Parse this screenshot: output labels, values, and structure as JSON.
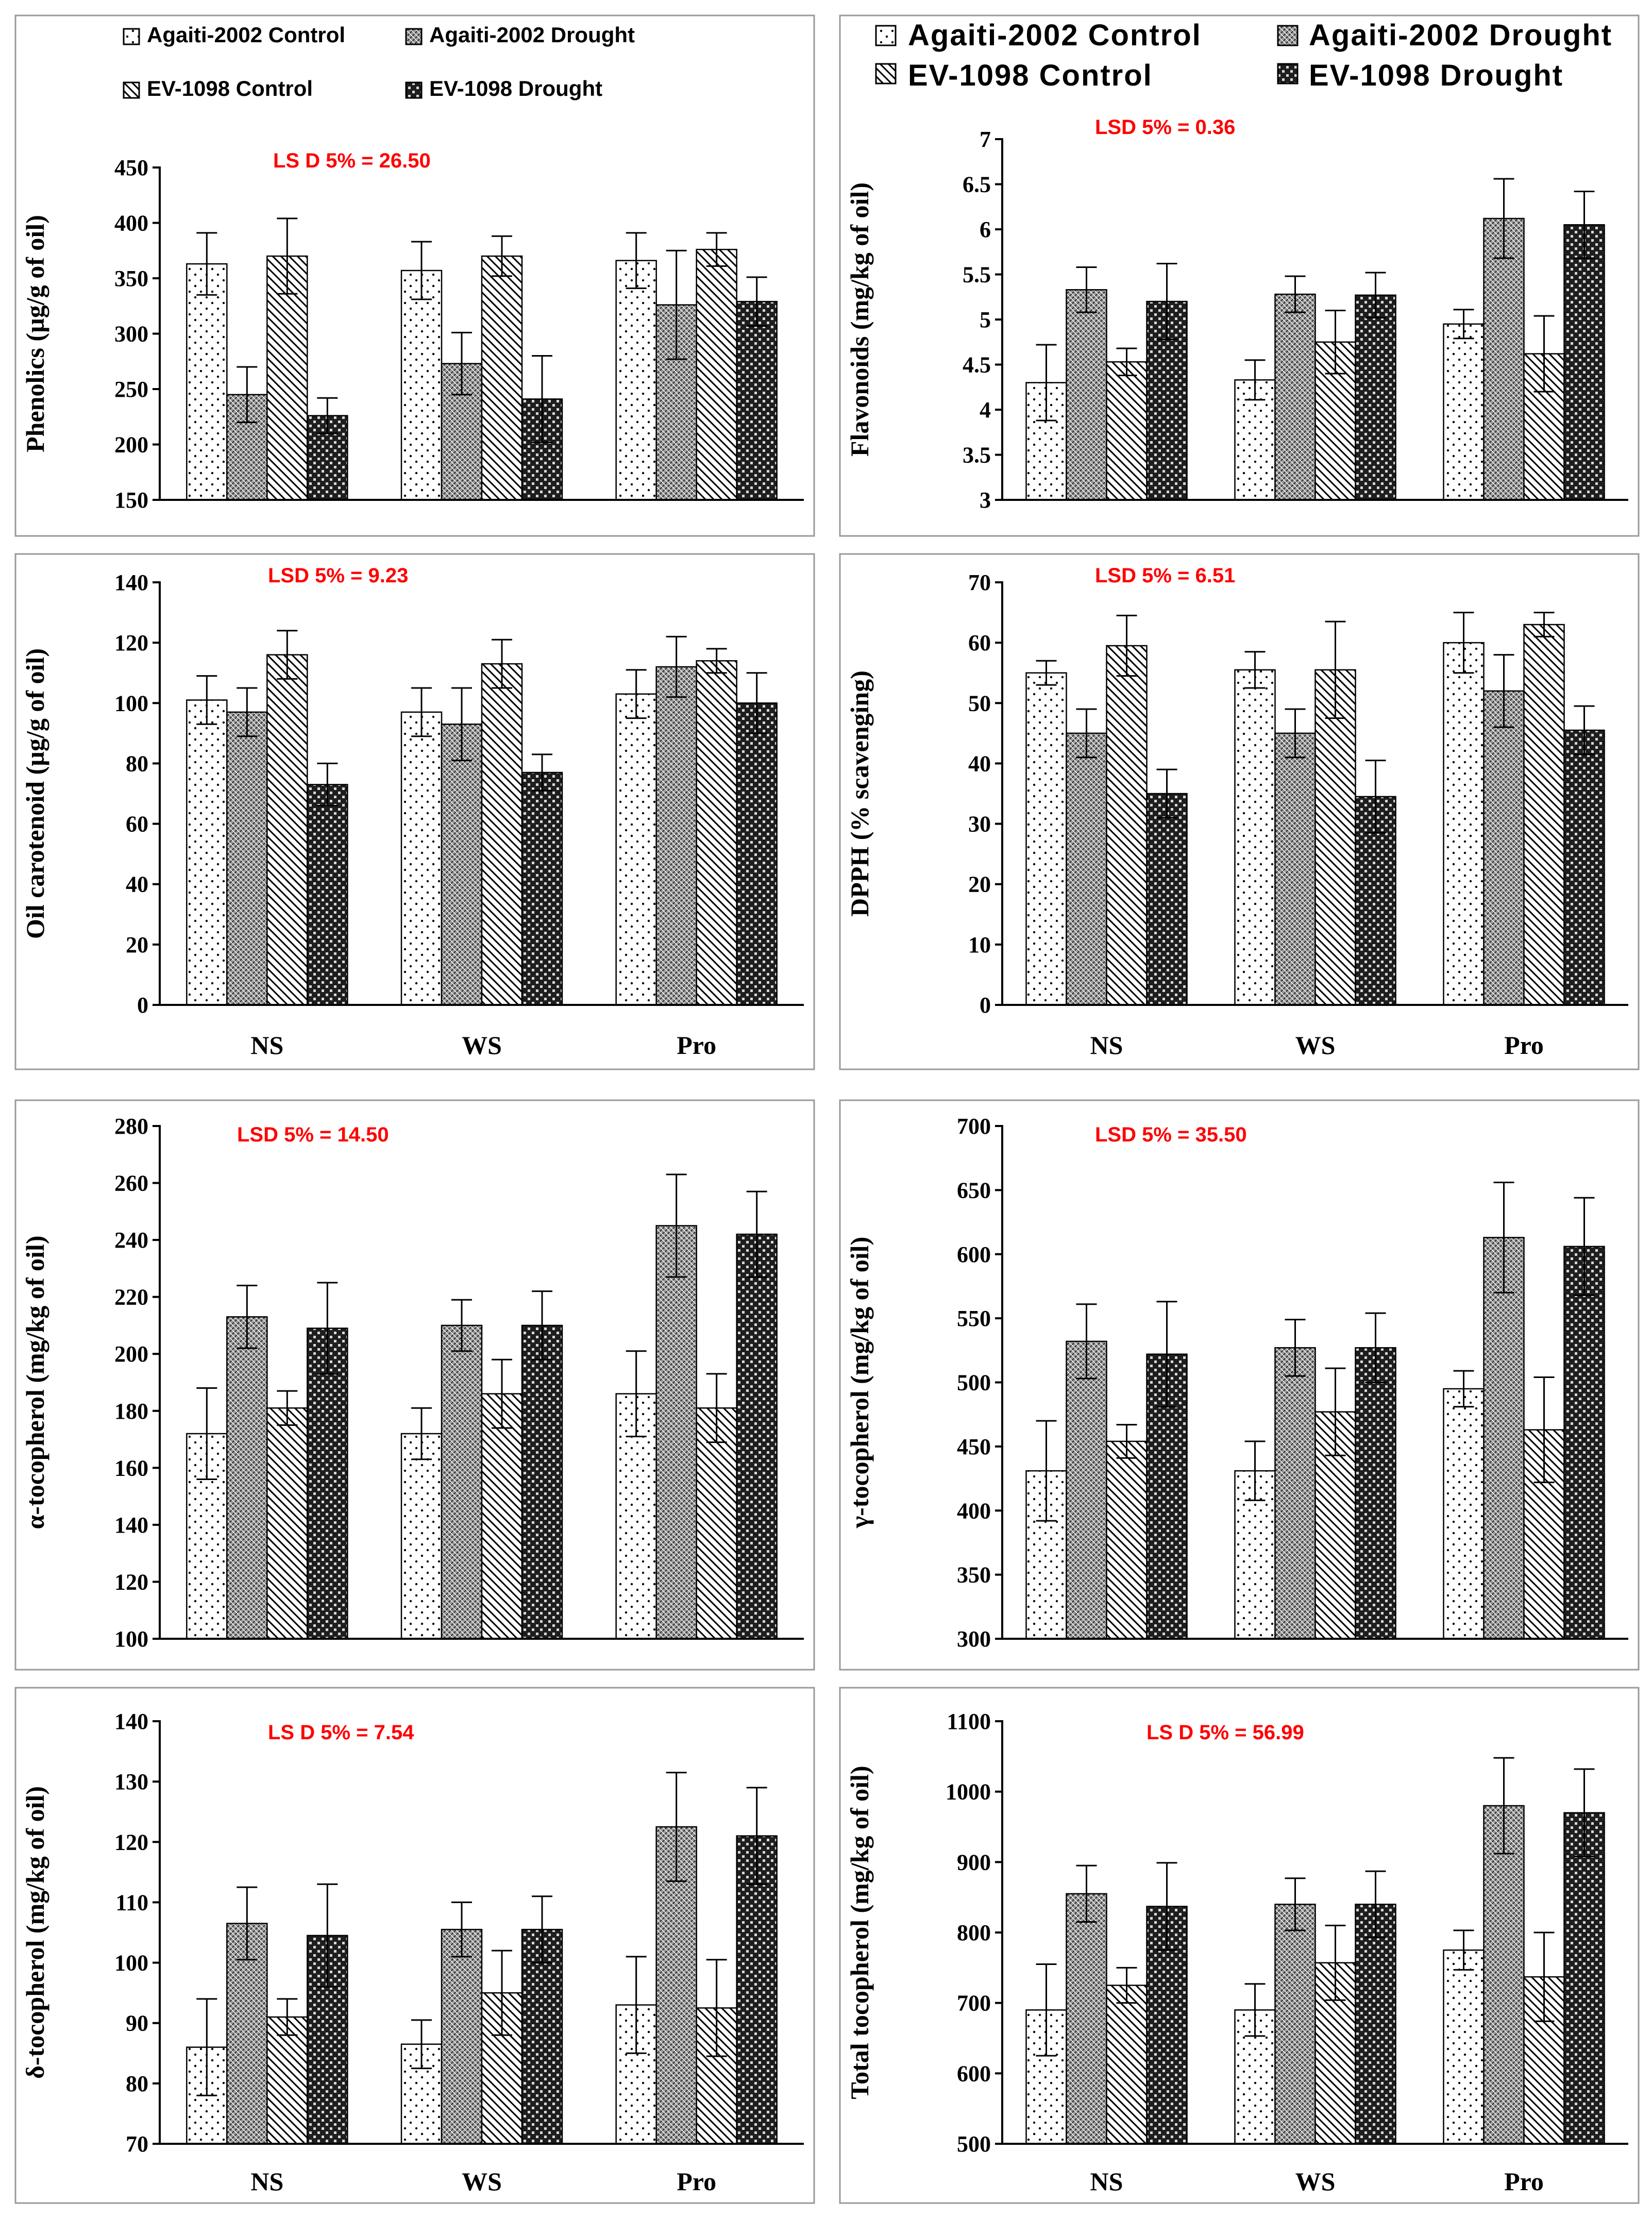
{
  "categories": [
    "NS",
    "WS",
    "Pro"
  ],
  "series_names": [
    "Agaiti-2002 Control",
    "Agaiti-2002 Drought",
    "EV-1098 Control",
    "EV-1098 Drought"
  ],
  "colors": {
    "lsd": "#ff0000",
    "axis": "#000000",
    "frame": "#9a9a9a",
    "bar_fill": "#ffffff"
  },
  "series_patterns": [
    "dots-icon",
    "dense-crosshatch-icon",
    "diagonal-hatch-icon",
    "checker-icon"
  ],
  "chart_data": [
    {
      "type": "bar",
      "title": "",
      "ylabel": "Phenolics (µg/g of oil)",
      "ylim": [
        150,
        450
      ],
      "yticks": [
        "150",
        "200",
        "250",
        "300",
        "350",
        "400",
        "450"
      ],
      "lsd": "LS D  5% =  26.50",
      "categories": [
        "NS",
        "WS",
        "Pro"
      ],
      "show_categories": false,
      "series": [
        {
          "name": "Agaiti-2002 Control",
          "values": [
            363,
            357,
            366
          ],
          "errors": [
            28,
            26,
            25
          ]
        },
        {
          "name": "Agaiti-2002 Drought",
          "values": [
            245,
            273,
            326
          ],
          "errors": [
            25,
            28,
            49
          ]
        },
        {
          "name": "EV-1098 Control",
          "values": [
            370,
            370,
            376
          ],
          "errors": [
            34,
            18,
            15
          ]
        },
        {
          "name": "EV-1098 Drought",
          "values": [
            226,
            241,
            329
          ],
          "errors": [
            16,
            39,
            22
          ]
        }
      ]
    },
    {
      "type": "bar",
      "title": "",
      "ylabel": "Flavonoids (mg/kg of oil)",
      "ylim": [
        3,
        7
      ],
      "yticks": [
        "3",
        "3.5",
        "4",
        "4.5",
        "5",
        "5.5",
        "6",
        "6.5",
        "7"
      ],
      "lsd": "LSD 5% = 0.36",
      "categories": [
        "NS",
        "WS",
        "Pro"
      ],
      "show_categories": false,
      "series": [
        {
          "name": "Agaiti-2002 Control",
          "values": [
            4.3,
            4.33,
            4.95
          ],
          "errors": [
            0.42,
            0.22,
            0.16
          ]
        },
        {
          "name": "Agaiti-2002 Drought",
          "values": [
            5.33,
            5.28,
            6.12
          ],
          "errors": [
            0.25,
            0.2,
            0.44
          ]
        },
        {
          "name": "EV-1098 Control",
          "values": [
            4.53,
            4.75,
            4.62
          ],
          "errors": [
            0.15,
            0.35,
            0.42
          ]
        },
        {
          "name": "EV-1098 Drought",
          "values": [
            5.2,
            5.27,
            6.05
          ],
          "errors": [
            0.42,
            0.25,
            0.37
          ]
        }
      ]
    },
    {
      "type": "bar",
      "title": "",
      "ylabel": "Oil carotenoid (µg/g of oil)",
      "ylim": [
        0,
        140
      ],
      "yticks": [
        "0",
        "20",
        "40",
        "60",
        "80",
        "100",
        "120",
        "140"
      ],
      "lsd": "LSD 5% = 9.23",
      "categories": [
        "NS",
        "WS",
        "Pro"
      ],
      "show_categories": true,
      "series": [
        {
          "name": "Agaiti-2002 Control",
          "values": [
            101,
            97,
            103
          ],
          "errors": [
            8,
            8,
            8
          ]
        },
        {
          "name": "Agaiti-2002 Drought",
          "values": [
            97,
            93,
            112
          ],
          "errors": [
            8,
            12,
            10
          ]
        },
        {
          "name": "EV-1098 Control",
          "values": [
            116,
            113,
            114
          ],
          "errors": [
            8,
            8,
            4
          ]
        },
        {
          "name": "EV-1098 Drought",
          "values": [
            73,
            77,
            100
          ],
          "errors": [
            7,
            6,
            10
          ]
        }
      ]
    },
    {
      "type": "bar",
      "title": "",
      "ylabel": "DPPH (% scavenging)",
      "ylim": [
        0,
        70
      ],
      "yticks": [
        "0",
        "10",
        "20",
        "30",
        "40",
        "50",
        "60",
        "70"
      ],
      "lsd": "LSD 5% = 6.51",
      "categories": [
        "NS",
        "WS",
        "Pro"
      ],
      "show_categories": true,
      "series": [
        {
          "name": "Agaiti-2002 Control",
          "values": [
            55,
            55.5,
            60
          ],
          "errors": [
            2,
            3,
            5
          ]
        },
        {
          "name": "Agaiti-2002 Drought",
          "values": [
            45,
            45,
            52
          ],
          "errors": [
            4,
            4,
            6
          ]
        },
        {
          "name": "EV-1098 Control",
          "values": [
            59.5,
            55.5,
            63
          ],
          "errors": [
            5,
            8,
            2
          ]
        },
        {
          "name": "EV-1098 Drought",
          "values": [
            35,
            34.5,
            45.5
          ],
          "errors": [
            4,
            6,
            4
          ]
        }
      ]
    },
    {
      "type": "bar",
      "title": "",
      "ylabel": "α-tocopherol (mg/kg of oil)",
      "ylim": [
        100,
        280
      ],
      "yticks": [
        "100",
        "120",
        "140",
        "160",
        "180",
        "200",
        "220",
        "240",
        "260",
        "280"
      ],
      "lsd": "LSD 5% = 14.50",
      "categories": [
        "NS",
        "WS",
        "Pro"
      ],
      "show_categories": false,
      "series": [
        {
          "name": "Agaiti-2002 Control",
          "values": [
            172,
            172,
            186
          ],
          "errors": [
            16,
            9,
            15
          ]
        },
        {
          "name": "Agaiti-2002 Drought",
          "values": [
            213,
            210,
            245
          ],
          "errors": [
            11,
            9,
            18
          ]
        },
        {
          "name": "EV-1098 Control",
          "values": [
            181,
            186,
            181
          ],
          "errors": [
            6,
            12,
            12
          ]
        },
        {
          "name": "EV-1098 Drought",
          "values": [
            209,
            210,
            242
          ],
          "errors": [
            16,
            12,
            15
          ]
        }
      ]
    },
    {
      "type": "bar",
      "title": "",
      "ylabel": "γ-tocopherol (mg/kg of oil)",
      "ylim": [
        300,
        700
      ],
      "yticks": [
        "300",
        "350",
        "400",
        "450",
        "500",
        "550",
        "600",
        "650",
        "700"
      ],
      "lsd": "LSD 5% = 35.50",
      "categories": [
        "NS",
        "WS",
        "Pro"
      ],
      "show_categories": false,
      "series": [
        {
          "name": "Agaiti-2002 Control",
          "values": [
            431,
            431,
            495
          ],
          "errors": [
            39,
            23,
            14
          ]
        },
        {
          "name": "Agaiti-2002 Drought",
          "values": [
            532,
            527,
            613
          ],
          "errors": [
            29,
            22,
            43
          ]
        },
        {
          "name": "EV-1098 Control",
          "values": [
            454,
            477,
            463
          ],
          "errors": [
            13,
            34,
            41
          ]
        },
        {
          "name": "EV-1098 Drought",
          "values": [
            522,
            527,
            606
          ],
          "errors": [
            41,
            27,
            38
          ]
        }
      ]
    },
    {
      "type": "bar",
      "title": "",
      "ylabel": "δ-tocopherol (mg/kg of oil)",
      "ylim": [
        70,
        140
      ],
      "yticks": [
        "70",
        "80",
        "90",
        "100",
        "110",
        "120",
        "130",
        "140"
      ],
      "lsd": "LS D  5% =  7.54",
      "categories": [
        "NS",
        "WS",
        "Pro"
      ],
      "show_categories": true,
      "series": [
        {
          "name": "Agaiti-2002 Control",
          "values": [
            86,
            86.5,
            93
          ],
          "errors": [
            8,
            4,
            8
          ]
        },
        {
          "name": "Agaiti-2002 Drought",
          "values": [
            106.5,
            105.5,
            122.5
          ],
          "errors": [
            6,
            4.5,
            9
          ]
        },
        {
          "name": "EV-1098 Control",
          "values": [
            91,
            95,
            92.5
          ],
          "errors": [
            3,
            7,
            8
          ]
        },
        {
          "name": "EV-1098 Drought",
          "values": [
            104.5,
            105.5,
            121
          ],
          "errors": [
            8.5,
            5.5,
            8
          ]
        }
      ]
    },
    {
      "type": "bar",
      "title": "",
      "ylabel": "Total tocopherol (mg/kg of oil)",
      "ylim": [
        500,
        1100
      ],
      "yticks": [
        "500",
        "600",
        "700",
        "800",
        "900",
        "1000",
        "1100"
      ],
      "lsd": "LS D  5% =  56.99",
      "categories": [
        "NS",
        "WS",
        "Pro"
      ],
      "show_categories": true,
      "series": [
        {
          "name": "Agaiti-2002 Control",
          "values": [
            690,
            690,
            775
          ],
          "errors": [
            65,
            37,
            28
          ]
        },
        {
          "name": "Agaiti-2002 Drought",
          "values": [
            855,
            840,
            980
          ],
          "errors": [
            40,
            37,
            68
          ]
        },
        {
          "name": "EV-1098 Control",
          "values": [
            725,
            757,
            737
          ],
          "errors": [
            25,
            53,
            63
          ]
        },
        {
          "name": "EV-1098 Drought",
          "values": [
            837,
            840,
            970
          ],
          "errors": [
            62,
            47,
            62
          ]
        }
      ]
    }
  ]
}
